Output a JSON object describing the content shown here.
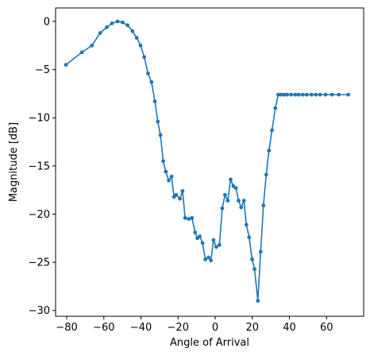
{
  "chart_data": {
    "type": "line",
    "title": "",
    "xlabel": "Angle of Arrival",
    "ylabel": "Magnitude [dB]",
    "xlim": [
      -86,
      80
    ],
    "ylim": [
      -30.6,
      1.4
    ],
    "x_ticks": [
      -80,
      -60,
      -40,
      -20,
      0,
      20,
      40,
      60
    ],
    "x_tick_labels": [
      "−80",
      "−60",
      "−40",
      "−20",
      "0",
      "20",
      "40",
      "60"
    ],
    "y_ticks": [
      0,
      -5,
      -10,
      -15,
      -20,
      -25,
      -30
    ],
    "y_tick_labels": [
      "0",
      "−5",
      "−10",
      "−15",
      "−20",
      "−25",
      "−30"
    ],
    "grid": false,
    "color": "#1f77b4",
    "marker": "circle",
    "series": [
      {
        "x": [
          -80.4,
          -71.8,
          -66.4,
          -62.0,
          -58.4,
          -55.6,
          -52.6,
          -49.9,
          -47.2,
          -44.6,
          -42.3,
          -40.2,
          -38.2,
          -36.2,
          -34.3,
          -32.5,
          -30.9,
          -29.5,
          -28.0,
          -26.6,
          -25.0,
          -23.5,
          -22.2,
          -21.0,
          -19.0,
          -17.6,
          -16.2,
          -14.2,
          -12.5,
          -10.8,
          -9.6,
          -8.3,
          -6.8,
          -5.3,
          -3.6,
          -2.3,
          -0.9,
          0.6,
          2.3,
          3.8,
          5.3,
          6.8,
          8.3,
          9.8,
          11.2,
          12.6,
          14.0,
          15.5,
          16.8,
          18.3,
          19.9,
          21.2,
          23.0,
          24.5,
          26.0,
          27.5,
          29.0,
          30.6,
          32.4,
          34.0,
          35.5,
          37.1,
          38.8,
          41.0,
          43.2,
          45.0,
          47.2,
          49.3,
          51.8,
          54.2,
          56.5,
          59.5,
          63.0,
          66.6,
          71.7
        ],
        "y": [
          -4.5,
          -3.2,
          -2.5,
          -1.2,
          -0.6,
          -0.2,
          0.0,
          -0.1,
          -0.4,
          -1.0,
          -1.7,
          -2.5,
          -3.7,
          -5.4,
          -6.3,
          -8.3,
          -10.4,
          -11.8,
          -14.5,
          -15.6,
          -16.5,
          -16.1,
          -18.2,
          -18.0,
          -18.4,
          -17.6,
          -20.4,
          -20.5,
          -20.4,
          -21.9,
          -22.5,
          -22.3,
          -23.0,
          -24.7,
          -24.5,
          -24.8,
          -22.7,
          -23.4,
          -23.2,
          -19.4,
          -18.0,
          -18.6,
          -16.4,
          -17.1,
          -17.3,
          -18.6,
          -19.3,
          -18.6,
          -21.1,
          -22.4,
          -24.7,
          -25.7,
          -29.0,
          -23.9,
          -19.1,
          -15.9,
          -13.4,
          -11.3,
          -9.0,
          -7.6,
          -7.6,
          -7.6,
          -7.6,
          -7.6,
          -7.6,
          -7.6,
          -7.6,
          -7.6,
          -7.6,
          -7.6,
          -7.6,
          -7.6,
          -7.6,
          -7.6,
          -7.6
        ]
      }
    ]
  }
}
